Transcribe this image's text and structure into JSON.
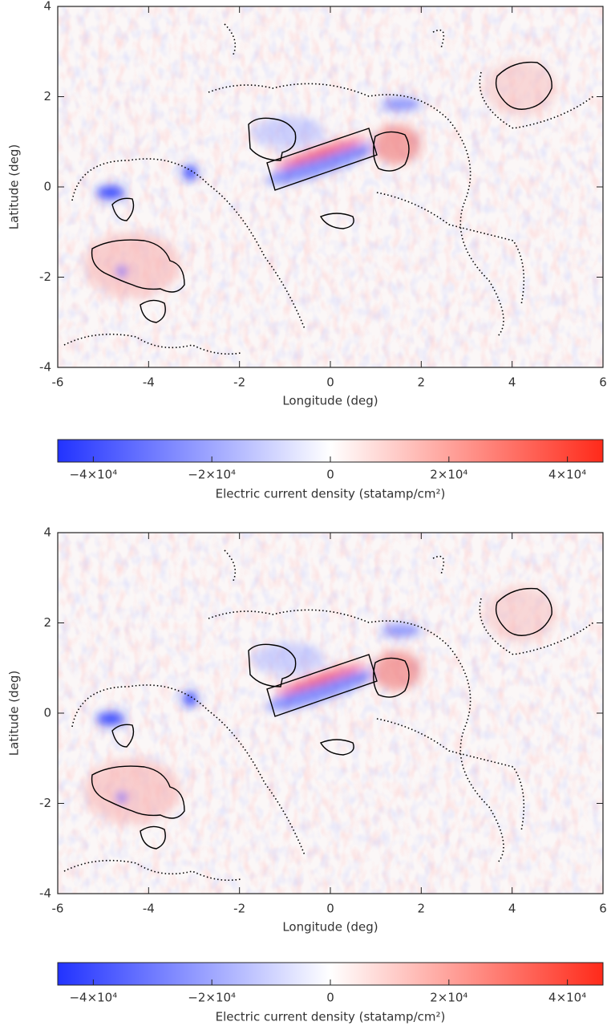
{
  "chart_data": [
    {
      "type": "heatmap",
      "xlabel": "Longitude (deg)",
      "ylabel": "Latitude (deg)",
      "xlim": [
        -6,
        6
      ],
      "ylim": [
        -4,
        4
      ],
      "xticks": [
        -6,
        -4,
        -2,
        0,
        2,
        4,
        6
      ],
      "yticks": [
        -4,
        -2,
        0,
        2,
        4
      ],
      "colorbar": {
        "label": "Electric current density (statamp/cm²)",
        "clim": [
          -46000,
          46000
        ],
        "colors": [
          "#2233ff",
          "#ffffff",
          "#ff2a1a"
        ],
        "ticks": [
          {
            "value": -40000,
            "label": "−4×10⁴"
          },
          {
            "value": -20000,
            "label": "−2×10⁴"
          },
          0,
          {
            "value": 20000,
            "label": "2×10⁴"
          },
          {
            "value": 40000,
            "label": "4×10⁴"
          }
        ]
      }
    },
    {
      "type": "heatmap",
      "xlabel": "Longitude (deg)",
      "ylabel": "Latitude (deg)",
      "xlim": [
        -6,
        6
      ],
      "ylim": [
        -4,
        4
      ],
      "xticks": [
        -6,
        -4,
        -2,
        0,
        2,
        4,
        6
      ],
      "yticks": [
        -4,
        -2,
        0,
        2,
        4
      ],
      "colorbar": {
        "label": "Electric current density (statamp/cm²)",
        "clim": [
          -46000,
          46000
        ],
        "colors": [
          "#2233ff",
          "#ffffff",
          "#ff2a1a"
        ],
        "ticks": [
          {
            "value": -40000,
            "label": "−4×10⁴"
          },
          {
            "value": -20000,
            "label": "−2×10⁴"
          },
          0,
          {
            "value": 20000,
            "label": "2×10⁴"
          },
          {
            "value": 40000,
            "label": "4×10⁴"
          }
        ]
      }
    }
  ]
}
